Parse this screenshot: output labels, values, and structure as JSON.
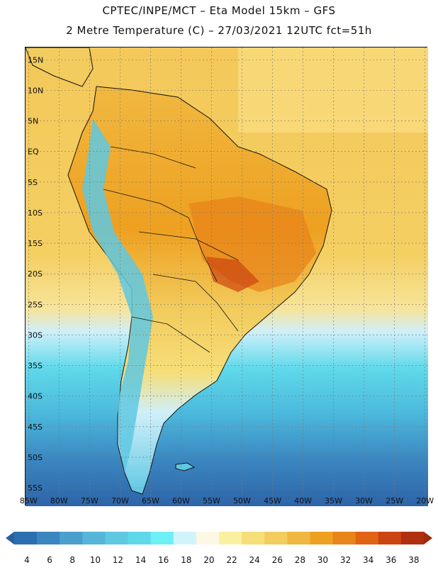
{
  "title": {
    "line1": "CPTEC/INPE/MCT –  Eta Model 15km – GFS",
    "line2": "2 Metre Temperature (C) – 27/03/2021 12UTC fct=51h"
  },
  "map": {
    "lat_labels": [
      "15N",
      "10N",
      "5N",
      "EQ",
      "5S",
      "10S",
      "15S",
      "20S",
      "25S",
      "30S",
      "35S",
      "40S",
      "45S",
      "50S",
      "55S"
    ],
    "lon_labels": [
      "85W",
      "80W",
      "75W",
      "70W",
      "65W",
      "60W",
      "55W",
      "50W",
      "45W",
      "40W",
      "35W",
      "30W",
      "25W",
      "20W"
    ],
    "lat_values": [
      15,
      10,
      5,
      0,
      -5,
      -10,
      -15,
      -20,
      -25,
      -30,
      -35,
      -40,
      -45,
      -50,
      -55
    ],
    "lon_values": [
      -85,
      -80,
      -75,
      -70,
      -65,
      -60,
      -55,
      -50,
      -45,
      -40,
      -35,
      -30,
      -25,
      -20
    ],
    "lat_range": [
      -58,
      17
    ],
    "lon_range": [
      -85.5,
      -19.5
    ]
  },
  "colorbar": {
    "ticks": [
      "4",
      "6",
      "8",
      "10",
      "12",
      "14",
      "16",
      "18",
      "20",
      "22",
      "24",
      "26",
      "28",
      "30",
      "32",
      "34",
      "36",
      "38"
    ],
    "colors": [
      "#2c6fb0",
      "#3b86c0",
      "#4b9fcd",
      "#56b5d8",
      "#5fc8e2",
      "#5fd9ea",
      "#6cf0f5",
      "#cff5fb",
      "#fdf8e4",
      "#fbf0a0",
      "#f6de78",
      "#f2cc5e",
      "#f0b840",
      "#eea020",
      "#e8841a",
      "#e06414",
      "#cc4410",
      "#b03010"
    ],
    "under_color": "#2c5da0",
    "over_color": "#a02a0c"
  }
}
